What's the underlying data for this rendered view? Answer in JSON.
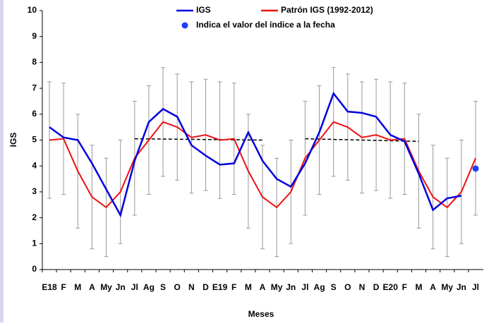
{
  "chart_data": {
    "type": "line",
    "xlabel": "Meses",
    "ylabel": "IGS",
    "categories": [
      "E18",
      "F",
      "M",
      "A",
      "My",
      "Jn",
      "Jl",
      "Ag",
      "S",
      "O",
      "N",
      "D",
      "E19",
      "F",
      "M",
      "A",
      "My",
      "Jn",
      "Jl",
      "Ag",
      "S",
      "O",
      "N",
      "D",
      "E20",
      "F",
      "M",
      "A",
      "My",
      "Jn",
      "Jl"
    ],
    "ylim": [
      0,
      10
    ],
    "yticks": [
      0,
      1,
      2,
      3,
      4,
      5,
      6,
      7,
      8,
      9,
      10
    ],
    "series": [
      {
        "name": "IGS",
        "color": "#0000dd",
        "style": "line",
        "values": [
          5.5,
          5.1,
          5.0,
          4.1,
          3.1,
          2.1,
          4.2,
          5.7,
          6.2,
          5.9,
          4.8,
          4.4,
          4.05,
          4.1,
          5.3,
          4.2,
          3.5,
          3.2,
          4.1,
          5.3,
          6.8,
          6.1,
          6.05,
          5.9,
          5.2,
          4.95,
          3.7,
          2.3,
          2.75,
          2.85,
          null
        ]
      },
      {
        "name": "Patrón IGS (1992-2012)",
        "color": "#ee1111",
        "style": "line",
        "error_color": "#999999",
        "values": [
          5.0,
          5.05,
          3.8,
          2.8,
          2.4,
          3.0,
          4.3,
          5.0,
          5.7,
          5.5,
          5.1,
          5.2,
          5.0,
          5.05,
          3.8,
          2.8,
          2.4,
          3.0,
          4.3,
          5.0,
          5.7,
          5.5,
          5.1,
          5.2,
          5.0,
          5.05,
          3.8,
          2.8,
          2.4,
          3.0,
          4.3
        ],
        "errors": [
          2.25,
          2.15,
          2.2,
          2.0,
          1.9,
          2.0,
          2.2,
          2.1,
          2.1,
          2.05,
          2.15,
          2.15,
          2.25,
          2.15,
          2.2,
          2.0,
          1.9,
          2.0,
          2.2,
          2.1,
          2.1,
          2.05,
          2.15,
          2.15,
          2.25,
          2.15,
          2.2,
          2.0,
          1.9,
          2.0,
          2.2
        ]
      },
      {
        "name": "Indica el valor del índice a la fecha",
        "color": "#1a3fff",
        "style": "marker",
        "values": [
          null,
          null,
          null,
          null,
          null,
          null,
          null,
          null,
          null,
          null,
          null,
          null,
          null,
          null,
          null,
          null,
          null,
          null,
          null,
          null,
          null,
          null,
          null,
          null,
          null,
          null,
          null,
          null,
          null,
          null,
          3.9
        ]
      }
    ],
    "trend_lines": [
      {
        "color": "#000000",
        "values": [
          null,
          null,
          null,
          null,
          null,
          null,
          5.05,
          null,
          null,
          null,
          null,
          null,
          null,
          null,
          null,
          5.0,
          null,
          null,
          null,
          null,
          null,
          null,
          null,
          null,
          null,
          null,
          null,
          null,
          null,
          null,
          null
        ]
      },
      {
        "color": "#000000",
        "values": [
          null,
          null,
          null,
          null,
          null,
          null,
          null,
          null,
          null,
          null,
          null,
          null,
          null,
          null,
          null,
          null,
          null,
          null,
          5.05,
          null,
          null,
          null,
          null,
          null,
          null,
          null,
          4.95,
          null,
          null,
          null,
          null
        ]
      }
    ]
  }
}
